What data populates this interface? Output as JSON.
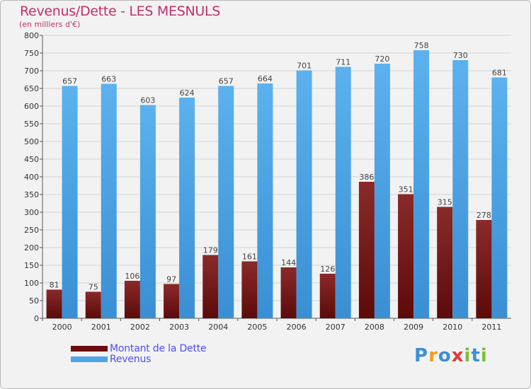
{
  "title": "Revenus/Dette - LES MESNULS",
  "subtitle": "(en milliers d'€)",
  "legend": [
    {
      "label": "Montant de la Dette",
      "color": "#6b0d0d"
    },
    {
      "label": "Revenus",
      "color": "#4da6e8"
    }
  ],
  "logo": {
    "text": "Proxiti",
    "letters": [
      "P",
      "r",
      "o",
      "x",
      "i",
      "t",
      "i"
    ],
    "colors": [
      "#3d8fd6",
      "#f29c1f",
      "#3d8fd6",
      "#e03a3a",
      "#7bbf3a",
      "#3d8fd6",
      "#7bbf3a"
    ]
  },
  "colors": {
    "debt_top": "#8a2a2a",
    "debt_bottom": "#5c0a0a",
    "rev_top": "#5cb1ee",
    "rev_bottom": "#3a8fd4",
    "grid": "#d4d4d4",
    "axis_text": "#333333",
    "value_text": "#444444"
  },
  "chart_data": {
    "type": "bar",
    "title": "Revenus/Dette - LES MESNULS",
    "subtitle": "(en milliers d'€)",
    "categories": [
      "2000",
      "2001",
      "2002",
      "2003",
      "2004",
      "2005",
      "2006",
      "2007",
      "2008",
      "2009",
      "2010",
      "2011"
    ],
    "series": [
      {
        "name": "Montant de la Dette",
        "values": [
          81,
          75,
          106,
          97,
          179,
          161,
          144,
          126,
          386,
          351,
          315,
          278
        ]
      },
      {
        "name": "Revenus",
        "values": [
          657,
          663,
          603,
          624,
          657,
          664,
          701,
          711,
          720,
          758,
          730,
          681
        ]
      }
    ],
    "ylim": [
      0,
      800
    ],
    "yticks": [
      0,
      50,
      100,
      150,
      200,
      250,
      300,
      350,
      400,
      450,
      500,
      550,
      600,
      650,
      700,
      750,
      800
    ],
    "grid": true,
    "legend_position": "bottom-left"
  }
}
